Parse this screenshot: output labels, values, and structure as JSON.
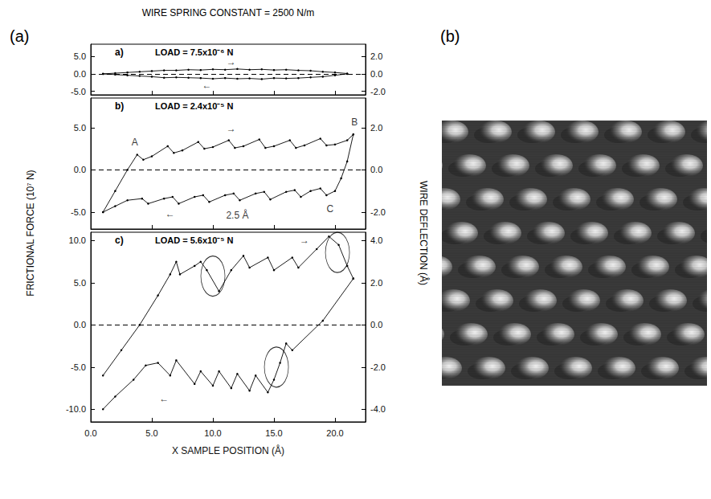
{
  "figure": {
    "title": "WIRE SPRING CONSTANT = 2500 N/m",
    "panel_label": "(a)",
    "ylabel": "FRICTIONAL FORCE (10⁷ N)",
    "y2label": "WIRE DEFLECTION (Å)"
  },
  "image": {
    "panel_label": "(b)"
  },
  "chart_data": [
    {
      "type": "line",
      "panel_label": "a)",
      "title": "LOAD = 7.5x10⁻⁶ N",
      "tick_labels": "y",
      "xlim": [
        0,
        22.5
      ],
      "xticks": [
        {
          "value": 0,
          "label": "0.0"
        },
        {
          "value": 5,
          "label": "5.0"
        },
        {
          "value": 10,
          "label": "10.0"
        },
        {
          "value": 15,
          "label": "15.0"
        },
        {
          "value": 20,
          "label": "20.0"
        }
      ],
      "ylim": [
        -6,
        8.5
      ],
      "yticks": [
        {
          "value": -5,
          "label": "-5.0"
        },
        {
          "value": 0,
          "label": "0.0"
        },
        {
          "value": 5,
          "label": "5.0"
        }
      ],
      "y2lim": [
        -2.4,
        3.4
      ],
      "y2ticks": [
        {
          "value": -2,
          "label": "-2.0"
        },
        {
          "value": 0,
          "label": "0.0"
        },
        {
          "value": 2,
          "label": "2.0"
        }
      ],
      "reference_line": {
        "y": 0,
        "line_style": "dashed"
      },
      "series": [
        {
          "color": "#000000",
          "marker": "dot",
          "line_style": "solid",
          "x": [
            1,
            2,
            3,
            4,
            5,
            6,
            7,
            8,
            9,
            10,
            11,
            12,
            13,
            14,
            15,
            16,
            17,
            18,
            19,
            20,
            21
          ],
          "values": [
            0,
            0.2,
            0.4,
            0.6,
            0.8,
            1.0,
            1.0,
            1.2,
            1.1,
            1.3,
            1.2,
            1.4,
            1.2,
            1.3,
            1.1,
            1.2,
            1.0,
            0.9,
            0.6,
            0.4,
            0.1
          ]
        },
        {
          "color": "#000000",
          "marker": "dot",
          "line_style": "solid",
          "x": [
            21,
            20,
            19,
            18,
            17,
            16,
            15,
            14,
            13,
            12,
            11,
            10,
            9,
            8,
            7,
            6,
            5,
            4,
            3,
            2,
            1
          ],
          "values": [
            0,
            -0.4,
            -0.8,
            -1.0,
            -1.2,
            -1.3,
            -1.2,
            -1.5,
            -1.3,
            -1.4,
            -1.2,
            -1.4,
            -1.2,
            -1.1,
            -1.0,
            -1.1,
            -0.8,
            -0.6,
            -0.4,
            -0.2,
            0
          ]
        }
      ],
      "annotations": [
        {
          "text": "→",
          "x": 11.5,
          "y": 3.5
        },
        {
          "text": "←",
          "x": 9.5,
          "y": -3.2
        }
      ]
    },
    {
      "type": "line",
      "panel_label": "b)",
      "title": "LOAD = 2.4x10⁻⁵ N",
      "tick_labels": "y",
      "xlim": [
        0,
        22.5
      ],
      "xticks": [
        {
          "value": 0,
          "label": "0.0"
        },
        {
          "value": 5,
          "label": "5.0"
        },
        {
          "value": 10,
          "label": "10.0"
        },
        {
          "value": 15,
          "label": "15.0"
        },
        {
          "value": 20,
          "label": "20.0"
        }
      ],
      "ylim": [
        -7,
        8.5
      ],
      "yticks": [
        {
          "value": -5,
          "label": "-5.0"
        },
        {
          "value": 0,
          "label": "0.0"
        },
        {
          "value": 5,
          "label": "5.0"
        }
      ],
      "y2lim": [
        -2.8,
        3.4
      ],
      "y2ticks": [
        {
          "value": -2,
          "label": "-2.0"
        },
        {
          "value": 0,
          "label": "0.0"
        },
        {
          "value": 2,
          "label": "2.0"
        }
      ],
      "reference_line": {
        "y": 0,
        "line_style": "dashed"
      },
      "series": [
        {
          "color": "#000000",
          "marker": "dot",
          "line_style": "solid",
          "x": [
            1,
            2,
            3,
            3.8,
            4.3,
            5,
            6.3,
            6.8,
            7.5,
            8.8,
            9.3,
            10,
            11.3,
            11.8,
            12.5,
            13.8,
            14.3,
            15,
            16.3,
            16.8,
            17.5,
            18.8,
            19.3,
            20,
            21,
            21.5
          ],
          "values": [
            -5.0,
            -2.5,
            0,
            1.8,
            1.2,
            1.6,
            2.8,
            2.0,
            2.3,
            3.3,
            2.5,
            2.7,
            3.5,
            2.6,
            2.8,
            3.6,
            2.6,
            2.8,
            3.5,
            2.6,
            2.9,
            3.7,
            2.9,
            3.0,
            3.5,
            4.2
          ]
        },
        {
          "color": "#000000",
          "marker": "dot",
          "line_style": "solid",
          "x": [
            21.5,
            21,
            20.5,
            20,
            19.3,
            18.8,
            18,
            17.2,
            16.7,
            16,
            14.7,
            14.2,
            13.5,
            12.2,
            11.7,
            11,
            9.7,
            9.2,
            8.5,
            7.2,
            6.7,
            6,
            4.7,
            4.2,
            3,
            2,
            1
          ],
          "values": [
            4.2,
            1,
            -1,
            -2.5,
            -3.0,
            -2.2,
            -2.5,
            -3.2,
            -2.4,
            -2.6,
            -3.5,
            -2.6,
            -2.8,
            -3.6,
            -2.8,
            -3.0,
            -3.8,
            -3.0,
            -3.2,
            -4.0,
            -3.2,
            -3.4,
            -4.0,
            -3.4,
            -3.6,
            -4.3,
            -5.0
          ]
        }
      ],
      "annotations": [
        {
          "text": "A",
          "x": 3.6,
          "y": 3.3
        },
        {
          "text": "B",
          "x": 21.6,
          "y": 5.6
        },
        {
          "text": "C",
          "x": 19.6,
          "y": -4.6
        },
        {
          "text": "2.5 Å",
          "x": 12,
          "y": -5.4
        },
        {
          "text": "→",
          "x": 11.5,
          "y": 4.9
        },
        {
          "text": "←",
          "x": 6.5,
          "y": -5.2
        }
      ]
    },
    {
      "type": "line",
      "panel_label": "c)",
      "title": "LOAD = 5.6x10⁻⁵ N",
      "xlabel": "X SAMPLE POSITION (Å)",
      "xlim": [
        0,
        22.5
      ],
      "xticks": [
        {
          "value": 0,
          "label": "0.0"
        },
        {
          "value": 5,
          "label": "5.0"
        },
        {
          "value": 10,
          "label": "10.0"
        },
        {
          "value": 15,
          "label": "15.0"
        },
        {
          "value": 20,
          "label": "20.0"
        }
      ],
      "ylim": [
        -11.5,
        11
      ],
      "yticks": [
        {
          "value": -10,
          "label": "-10.0"
        },
        {
          "value": -5,
          "label": "-5.0"
        },
        {
          "value": 0,
          "label": "0.0"
        },
        {
          "value": 5,
          "label": "5.0"
        },
        {
          "value": 10,
          "label": "10.0"
        }
      ],
      "y2lim": [
        -4.6,
        4.4
      ],
      "y2ticks": [
        {
          "value": -4,
          "label": "-4.0"
        },
        {
          "value": -2,
          "label": "-2.0"
        },
        {
          "value": 0,
          "label": "0.0"
        },
        {
          "value": 2,
          "label": "2.0"
        },
        {
          "value": 4,
          "label": "4.0"
        }
      ],
      "reference_line": {
        "y": 0,
        "line_style": "dashed"
      },
      "series": [
        {
          "color": "#000000",
          "marker": "dot",
          "line_style": "solid",
          "x": [
            1,
            2.5,
            4,
            5.5,
            6.5,
            7,
            7.3,
            8.5,
            9,
            9.5,
            10.5,
            11.5,
            12.5,
            13,
            14.5,
            15,
            16.5,
            17,
            18.5,
            19.5,
            20.3,
            21,
            21.5
          ],
          "values": [
            -6,
            -3,
            0,
            3.5,
            6.0,
            7.5,
            6.0,
            7.0,
            7.5,
            6.5,
            4.0,
            6.5,
            8.2,
            6.8,
            8.0,
            6.5,
            8.0,
            6.8,
            9.0,
            10.5,
            9.5,
            7.0,
            5.5
          ]
        },
        {
          "color": "#000000",
          "marker": "dot",
          "line_style": "solid",
          "x": [
            21.5,
            19,
            16.5,
            16,
            15.5,
            15,
            14.5,
            13.5,
            13,
            12,
            11.5,
            10.5,
            10,
            9,
            8.5,
            7,
            6.5,
            5.5,
            4.5,
            3.5,
            2,
            1
          ],
          "values": [
            5.5,
            0.5,
            -3.0,
            -2.2,
            -4.5,
            -6.5,
            -8.0,
            -6.0,
            -7.8,
            -5.8,
            -7.5,
            -5.5,
            -7.2,
            -5.5,
            -7.0,
            -4.2,
            -6.0,
            -4.5,
            -4.8,
            -6.5,
            -8.5,
            -10
          ]
        }
      ],
      "circles": [
        {
          "x": 10,
          "y": 5.8
        },
        {
          "x": 20.2,
          "y": 8.6
        },
        {
          "x": 15.2,
          "y": -5.0
        }
      ],
      "annotations": [
        {
          "text": "→",
          "x": 17.5,
          "y": 10.0
        },
        {
          "text": "←",
          "x": 6,
          "y": -8.7
        }
      ]
    }
  ]
}
